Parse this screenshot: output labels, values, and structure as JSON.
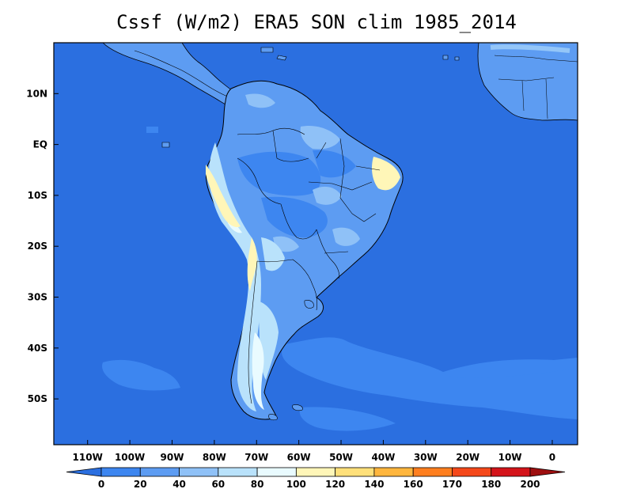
{
  "title": "Cssf (W/m2) ERA5 SON clim 1985_2014",
  "chart_data": {
    "type": "heatmap",
    "variable": "Cssf (W/m2)",
    "dataset": "ERA5",
    "season": "SON",
    "period": "1985_2014",
    "lon_range": [
      -118,
      6
    ],
    "lat_range": [
      -59,
      20
    ],
    "x_ticks": [
      {
        "lon": -110,
        "label": "110W"
      },
      {
        "lon": -100,
        "label": "100W"
      },
      {
        "lon": -90,
        "label": "90W"
      },
      {
        "lon": -80,
        "label": "80W"
      },
      {
        "lon": -70,
        "label": "70W"
      },
      {
        "lon": -60,
        "label": "60W"
      },
      {
        "lon": -50,
        "label": "50W"
      },
      {
        "lon": -40,
        "label": "40W"
      },
      {
        "lon": -30,
        "label": "30W"
      },
      {
        "lon": -20,
        "label": "20W"
      },
      {
        "lon": -10,
        "label": "10W"
      },
      {
        "lon": 0,
        "label": "0"
      }
    ],
    "y_ticks": [
      {
        "lat": 10,
        "label": "10N"
      },
      {
        "lat": 0,
        "label": "EQ"
      },
      {
        "lat": -10,
        "label": "10S"
      },
      {
        "lat": -20,
        "label": "20S"
      },
      {
        "lat": -30,
        "label": "30S"
      },
      {
        "lat": -40,
        "label": "40S"
      },
      {
        "lat": -50,
        "label": "50S"
      }
    ],
    "colorbar": {
      "levels": [
        "0",
        "20",
        "40",
        "60",
        "80",
        "100",
        "120",
        "140",
        "160",
        "170",
        "180",
        "200"
      ],
      "colors": [
        "#2b6fe0",
        "#3d86f0",
        "#5d9cf2",
        "#8fc1f7",
        "#b9e2fb",
        "#e9fbff",
        "#fff6b8",
        "#ffe07a",
        "#ffb63e",
        "#ff7f1f",
        "#f5481a",
        "#d4141a",
        "#9e0f10"
      ]
    }
  }
}
